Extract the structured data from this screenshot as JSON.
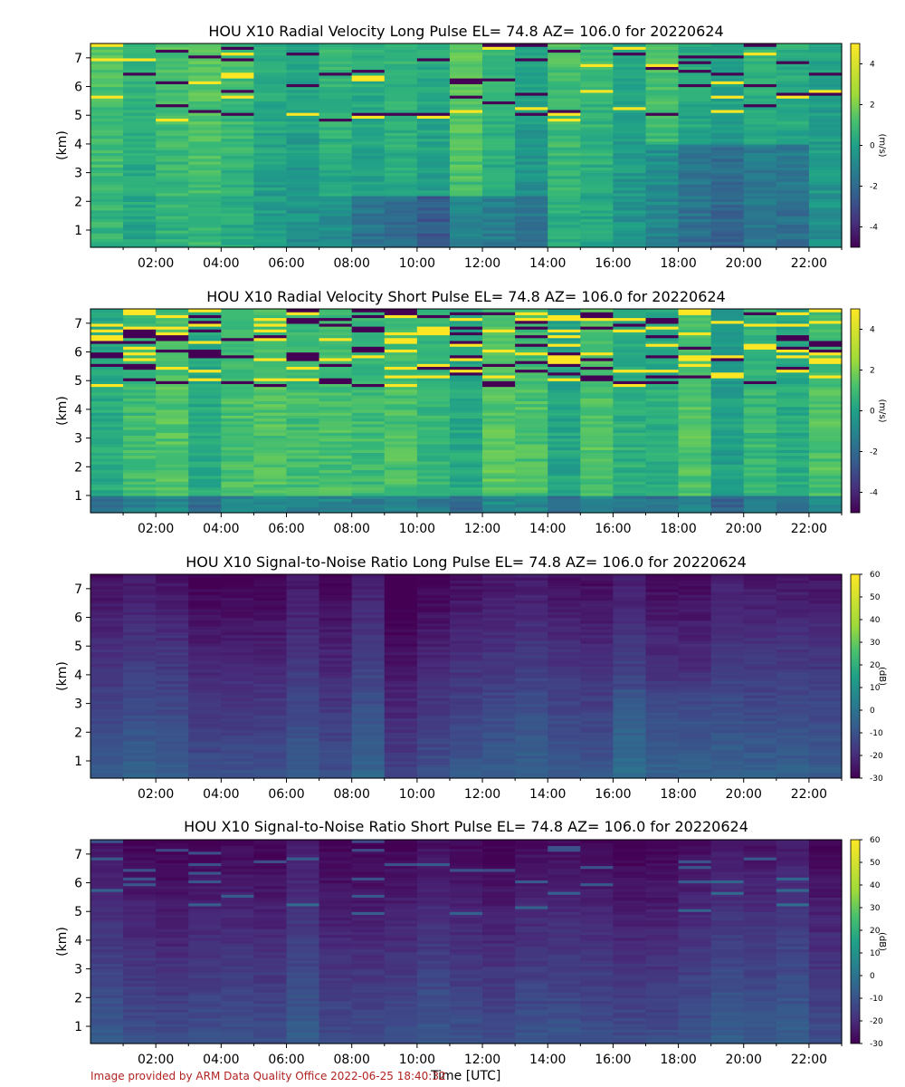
{
  "chart_data": [
    {
      "type": "heatmap",
      "title": "HOU X10 Radial Velocity Long Pulse EL= 74.8 AZ= 106.0 for 20220624",
      "ylabel": "(km)",
      "colorbar_label": "(m/s)",
      "x_tick_labels": [
        "02:00",
        "04:00",
        "06:00",
        "08:00",
        "10:00",
        "12:00",
        "14:00",
        "16:00",
        "18:00",
        "20:00",
        "22:00"
      ],
      "x_tick_hours": [
        2,
        4,
        6,
        8,
        10,
        12,
        14,
        16,
        18,
        20,
        22
      ],
      "xlim": [
        0,
        23
      ],
      "y_tick_labels": [
        "1",
        "2",
        "3",
        "4",
        "5",
        "6",
        "7"
      ],
      "y_ticks": [
        1,
        2,
        3,
        4,
        5,
        6,
        7
      ],
      "ylim": [
        0.4,
        7.5
      ],
      "colorbar_ticks": [
        "4",
        "2",
        "0",
        "-2",
        "-4"
      ],
      "colorbar_values": [
        4,
        2,
        0,
        -2,
        -4
      ],
      "color_range": [
        -5,
        5
      ],
      "colormap": "viridis",
      "field": "velocity_long"
    },
    {
      "type": "heatmap",
      "title": "HOU X10 Radial Velocity Short Pulse EL= 74.8 AZ= 106.0 for 20220624",
      "ylabel": "(km)",
      "colorbar_label": "(m/s)",
      "x_tick_labels": [
        "02:00",
        "04:00",
        "06:00",
        "08:00",
        "10:00",
        "12:00",
        "14:00",
        "16:00",
        "18:00",
        "20:00",
        "22:00"
      ],
      "x_tick_hours": [
        2,
        4,
        6,
        8,
        10,
        12,
        14,
        16,
        18,
        20,
        22
      ],
      "xlim": [
        0,
        23
      ],
      "y_tick_labels": [
        "1",
        "2",
        "3",
        "4",
        "5",
        "6",
        "7"
      ],
      "y_ticks": [
        1,
        2,
        3,
        4,
        5,
        6,
        7
      ],
      "ylim": [
        0.4,
        7.5
      ],
      "colorbar_ticks": [
        "4",
        "2",
        "0",
        "-2",
        "-4"
      ],
      "colorbar_values": [
        4,
        2,
        0,
        -2,
        -4
      ],
      "color_range": [
        -5,
        5
      ],
      "colormap": "viridis",
      "field": "velocity_short"
    },
    {
      "type": "heatmap",
      "title": "HOU X10 Signal-to-Noise Ratio Long Pulse EL= 74.8 AZ= 106.0 for 20220624",
      "ylabel": "(km)",
      "colorbar_label": "(dB)",
      "x_tick_labels": [
        "02:00",
        "04:00",
        "06:00",
        "08:00",
        "10:00",
        "12:00",
        "14:00",
        "16:00",
        "18:00",
        "20:00",
        "22:00"
      ],
      "x_tick_hours": [
        2,
        4,
        6,
        8,
        10,
        12,
        14,
        16,
        18,
        20,
        22
      ],
      "xlim": [
        0,
        23
      ],
      "y_tick_labels": [
        "1",
        "2",
        "3",
        "4",
        "5",
        "6",
        "7"
      ],
      "y_ticks": [
        1,
        2,
        3,
        4,
        5,
        6,
        7
      ],
      "ylim": [
        0.4,
        7.5
      ],
      "colorbar_ticks": [
        "60",
        "50",
        "40",
        "30",
        "20",
        "10",
        "0",
        "-10",
        "-20",
        "-30"
      ],
      "colorbar_values": [
        60,
        50,
        40,
        30,
        20,
        10,
        0,
        -10,
        -20,
        -30
      ],
      "color_range": [
        -30,
        60
      ],
      "colormap": "viridis",
      "field": "snr_long"
    },
    {
      "type": "heatmap",
      "title": "HOU X10 Signal-to-Noise Ratio Short Pulse EL= 74.8 AZ= 106.0 for 20220624",
      "ylabel": "(km)",
      "colorbar_label": "(dB)",
      "x_tick_labels": [
        "02:00",
        "04:00",
        "06:00",
        "08:00",
        "10:00",
        "12:00",
        "14:00",
        "16:00",
        "18:00",
        "20:00",
        "22:00"
      ],
      "x_tick_hours": [
        2,
        4,
        6,
        8,
        10,
        12,
        14,
        16,
        18,
        20,
        22
      ],
      "xlim": [
        0,
        23
      ],
      "y_tick_labels": [
        "1",
        "2",
        "3",
        "4",
        "5",
        "6",
        "7"
      ],
      "y_ticks": [
        1,
        2,
        3,
        4,
        5,
        6,
        7
      ],
      "ylim": [
        0.4,
        7.5
      ],
      "colorbar_ticks": [
        "60",
        "50",
        "40",
        "30",
        "20",
        "10",
        "0",
        "-10",
        "-20",
        "-30"
      ],
      "colorbar_values": [
        60,
        50,
        40,
        30,
        20,
        10,
        0,
        -10,
        -20,
        -30
      ],
      "color_range": [
        -30,
        60
      ],
      "colormap": "viridis",
      "field": "snr_short"
    }
  ],
  "xlabel": "Time [UTC]",
  "footer": "Image provided by ARM Data Quality Office 2022-06-25 18:40:32",
  "colors": {
    "footer": "#b22222",
    "viridis_low": "#440154",
    "viridis_mid": "#21918c",
    "viridis_high": "#fde725"
  }
}
